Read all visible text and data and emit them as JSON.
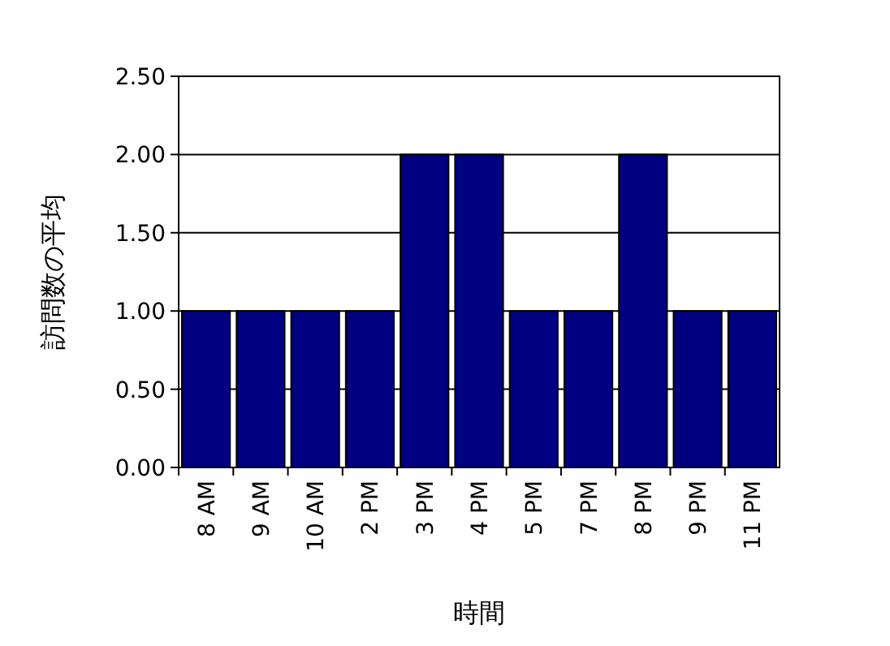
{
  "chart_data": {
    "type": "bar",
    "xlabel": "時間",
    "ylabel": "訪問数の平均",
    "categories": [
      "8 AM",
      "9 AM",
      "10 AM",
      "2 PM",
      "3 PM",
      "4 PM",
      "5 PM",
      "7 PM",
      "8 PM",
      "9 PM",
      "11 PM"
    ],
    "values": [
      1,
      1,
      1,
      1,
      2,
      2,
      1,
      1,
      2,
      1,
      1
    ],
    "color": "#000080",
    "ylim": [
      0,
      2.5
    ],
    "yticks": [
      {
        "value": 0,
        "label": "0.00"
      },
      {
        "value": 0.5,
        "label": "0.50"
      },
      {
        "value": 1,
        "label": "1.00"
      },
      {
        "value": 1.5,
        "label": "1.50"
      },
      {
        "value": 2,
        "label": "2.00"
      },
      {
        "value": 2.5,
        "label": "2.50"
      }
    ],
    "grid": "y"
  }
}
